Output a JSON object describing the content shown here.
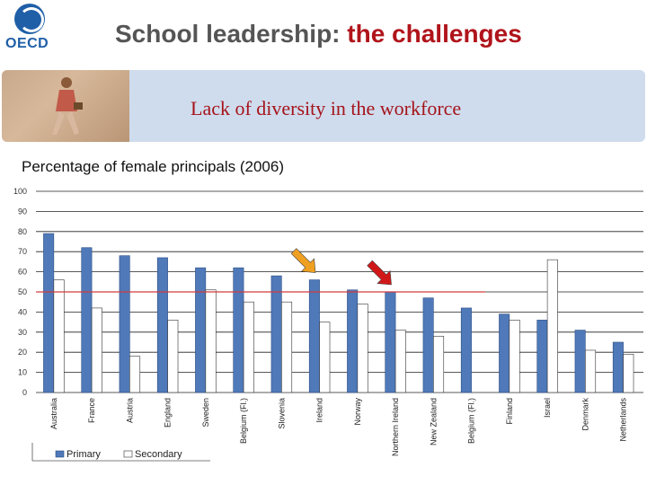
{
  "header": {
    "logo_text": "OECD",
    "title_part1": "School leadership:",
    "title_part2": " the challenges"
  },
  "banner": {
    "subtitle": "Lack of diversity in the workforce"
  },
  "colors": {
    "primary_bar": "#4f79b8",
    "secondary_bar": "#ffffff",
    "reference_line": "#d23c3c",
    "arrow_orange": "#f0a020",
    "arrow_red": "#d01818",
    "title_accent": "#b0141b"
  },
  "chart_data": {
    "type": "bar",
    "title": "Percentage of female principals (2006)",
    "categories": [
      "Australia",
      "France",
      "Austria",
      "England",
      "Sweden",
      "Belgium (Fl.)",
      "Slovenia",
      "Ireland",
      "Norway",
      "Northern Ireland",
      "New Zealand",
      "Belgium (Fl.)",
      "Finland",
      "Israel",
      "Denmark",
      "Netherlands"
    ],
    "series": [
      {
        "name": "Primary",
        "values": [
          79,
          72,
          68,
          67,
          62,
          62,
          58,
          56,
          51,
          50,
          47,
          42,
          39,
          36,
          31,
          25
        ]
      },
      {
        "name": "Secondary",
        "values": [
          56,
          42,
          18,
          36,
          51,
          45,
          45,
          35,
          44,
          31,
          28,
          null,
          36,
          66,
          21,
          19
        ]
      }
    ],
    "yticks": [
      "100",
      "90",
      "80",
      "70",
      "60",
      "50",
      "40",
      "30",
      "20",
      "10",
      "0"
    ],
    "ylim": [
      0,
      100
    ],
    "reference_value": 50,
    "highlighted_categories": [
      "Ireland",
      "Northern Ireland"
    ],
    "grid": true,
    "legend_position": "bottom-left"
  }
}
